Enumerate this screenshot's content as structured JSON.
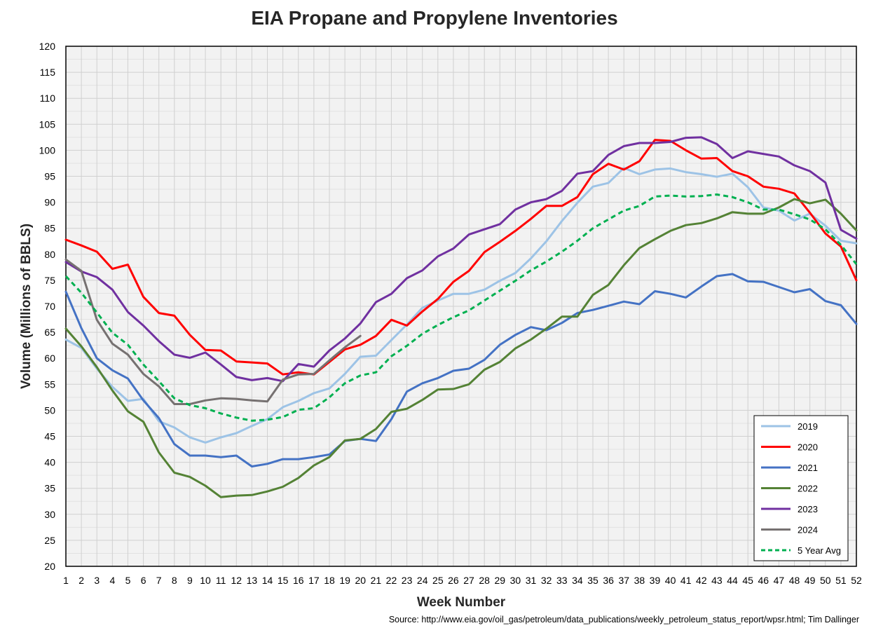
{
  "chart_data": {
    "type": "line",
    "title": "EIA Propane and Propylene Inventories",
    "xlabel": "Week Number",
    "ylabel": "Volume (Millions of BBLS)",
    "ylim": [
      20,
      120
    ],
    "yticks": [
      20,
      25,
      30,
      35,
      40,
      45,
      50,
      55,
      60,
      65,
      70,
      75,
      80,
      85,
      90,
      95,
      100,
      105,
      110,
      115,
      120
    ],
    "xlim": [
      1,
      52
    ],
    "xticks": [
      1,
      2,
      3,
      4,
      5,
      6,
      7,
      8,
      9,
      10,
      11,
      12,
      13,
      14,
      15,
      16,
      17,
      18,
      19,
      20,
      21,
      22,
      23,
      24,
      25,
      26,
      27,
      28,
      29,
      30,
      31,
      32,
      33,
      34,
      35,
      36,
      37,
      38,
      39,
      40,
      41,
      42,
      43,
      44,
      45,
      46,
      47,
      48,
      49,
      50,
      51,
      52
    ],
    "grid": true,
    "legend_position": "bottom-right",
    "series": [
      {
        "name": "2019",
        "color": "#9DC3E6",
        "dashed": false,
        "values": [
          63.6,
          62.0,
          58.0,
          54.5,
          51.8,
          52.2,
          47.9,
          46.7,
          44.8,
          43.8,
          44.8,
          45.6,
          47.0,
          48.3,
          50.6,
          51.8,
          53.3,
          54.2,
          57.0,
          60.3,
          60.5,
          63.5,
          66.5,
          69.7,
          71.1,
          72.4,
          72.4,
          73.2,
          74.9,
          76.4,
          79.2,
          82.5,
          86.4,
          89.9,
          93.0,
          93.7,
          96.6,
          95.4,
          96.3,
          96.5,
          95.8,
          95.4,
          94.9,
          95.5,
          92.9,
          89.0,
          88.4,
          86.5,
          87.8,
          85.5,
          82.6,
          82.1
        ]
      },
      {
        "name": "2020",
        "color": "#FF0000",
        "dashed": false,
        "values": [
          82.8,
          81.7,
          80.5,
          77.2,
          78.0,
          71.8,
          68.7,
          68.2,
          64.5,
          61.6,
          61.5,
          59.4,
          59.2,
          59.0,
          56.9,
          57.3,
          56.9,
          59.3,
          61.7,
          62.6,
          64.3,
          67.4,
          66.3,
          69.0,
          71.4,
          74.7,
          76.8,
          80.4,
          82.4,
          84.5,
          86.8,
          89.3,
          89.3,
          91.0,
          95.4,
          97.4,
          96.3,
          97.9,
          102.0,
          101.8,
          100.0,
          98.4,
          98.5,
          96.0,
          95.0,
          93.0,
          92.6,
          91.7,
          88.0,
          84.0,
          81.5,
          75.0
        ]
      },
      {
        "name": "2021",
        "color": "#4472C4",
        "dashed": false,
        "values": [
          72.8,
          65.8,
          60.0,
          57.7,
          56.1,
          51.9,
          48.5,
          43.5,
          41.3,
          41.3,
          41.0,
          41.3,
          39.2,
          39.7,
          40.6,
          40.6,
          41.0,
          41.5,
          44.1,
          44.5,
          44.1,
          48.3,
          53.6,
          55.2,
          56.2,
          57.6,
          58.0,
          59.7,
          62.6,
          64.5,
          66.0,
          65.4,
          66.8,
          68.7,
          69.3,
          70.1,
          70.9,
          70.4,
          72.9,
          72.4,
          71.7,
          73.8,
          75.8,
          76.2,
          74.8,
          74.7,
          73.7,
          72.7,
          73.3,
          71.0,
          70.2,
          66.6
        ]
      },
      {
        "name": "2022",
        "color": "#548235",
        "dashed": false,
        "values": [
          65.7,
          62.3,
          58.3,
          53.8,
          49.8,
          47.8,
          41.9,
          38.0,
          37.2,
          35.5,
          33.3,
          33.6,
          33.7,
          34.4,
          35.3,
          37.0,
          39.4,
          41.0,
          44.2,
          44.5,
          46.4,
          49.7,
          50.3,
          52.0,
          54.0,
          54.1,
          55.0,
          57.8,
          59.3,
          61.9,
          63.6,
          65.7,
          68.0,
          68.0,
          72.2,
          74.1,
          77.9,
          81.2,
          82.9,
          84.5,
          85.6,
          86.0,
          86.9,
          88.1,
          87.8,
          87.8,
          89.0,
          90.6,
          89.8,
          90.5,
          87.8,
          84.6
        ]
      },
      {
        "name": "2023",
        "color": "#7030A0",
        "dashed": false,
        "values": [
          78.5,
          76.7,
          75.6,
          73.2,
          68.9,
          66.3,
          63.3,
          60.7,
          60.1,
          61.1,
          58.8,
          56.4,
          55.8,
          56.2,
          55.6,
          58.9,
          58.4,
          61.5,
          63.8,
          66.7,
          70.8,
          72.4,
          75.4,
          76.9,
          79.6,
          81.1,
          83.8,
          84.8,
          85.8,
          88.6,
          90.0,
          90.6,
          92.2,
          95.5,
          96.0,
          99.1,
          100.8,
          101.4,
          101.4,
          101.6,
          102.4,
          102.5,
          101.2,
          98.5,
          99.8,
          99.3,
          98.8,
          97.1,
          96.0,
          93.8,
          84.7,
          83.0
        ]
      },
      {
        "name": "2024",
        "color": "#767171",
        "dashed": false,
        "values": [
          79.0,
          76.8,
          67.4,
          62.8,
          60.7,
          57.0,
          54.6,
          51.2,
          51.2,
          51.9,
          52.3,
          52.2,
          51.9,
          51.7,
          55.9,
          56.9,
          57.0,
          59.6,
          62.1,
          64.3
        ]
      },
      {
        "name": "5 Year Avg",
        "color": "#00B050",
        "dashed": true,
        "values": [
          75.8,
          72.6,
          68.8,
          64.9,
          62.6,
          58.8,
          55.6,
          52.3,
          51.0,
          50.4,
          49.4,
          48.6,
          48.0,
          48.2,
          48.7,
          50.1,
          50.4,
          52.5,
          55.2,
          56.7,
          57.3,
          60.4,
          62.4,
          64.7,
          66.4,
          67.9,
          69.2,
          71.1,
          73.0,
          74.9,
          76.9,
          78.6,
          80.5,
          82.6,
          85.0,
          86.7,
          88.4,
          89.3,
          91.1,
          91.3,
          91.1,
          91.2,
          91.5,
          91.0,
          90.0,
          88.6,
          88.6,
          87.7,
          86.7,
          84.8,
          81.8,
          78.1
        ]
      }
    ]
  },
  "source": "Source: http://www.eia.gov/oil_gas/petroleum/data_publications/weekly_petroleum_status_report/wpsr.html; Tim Dallinger"
}
